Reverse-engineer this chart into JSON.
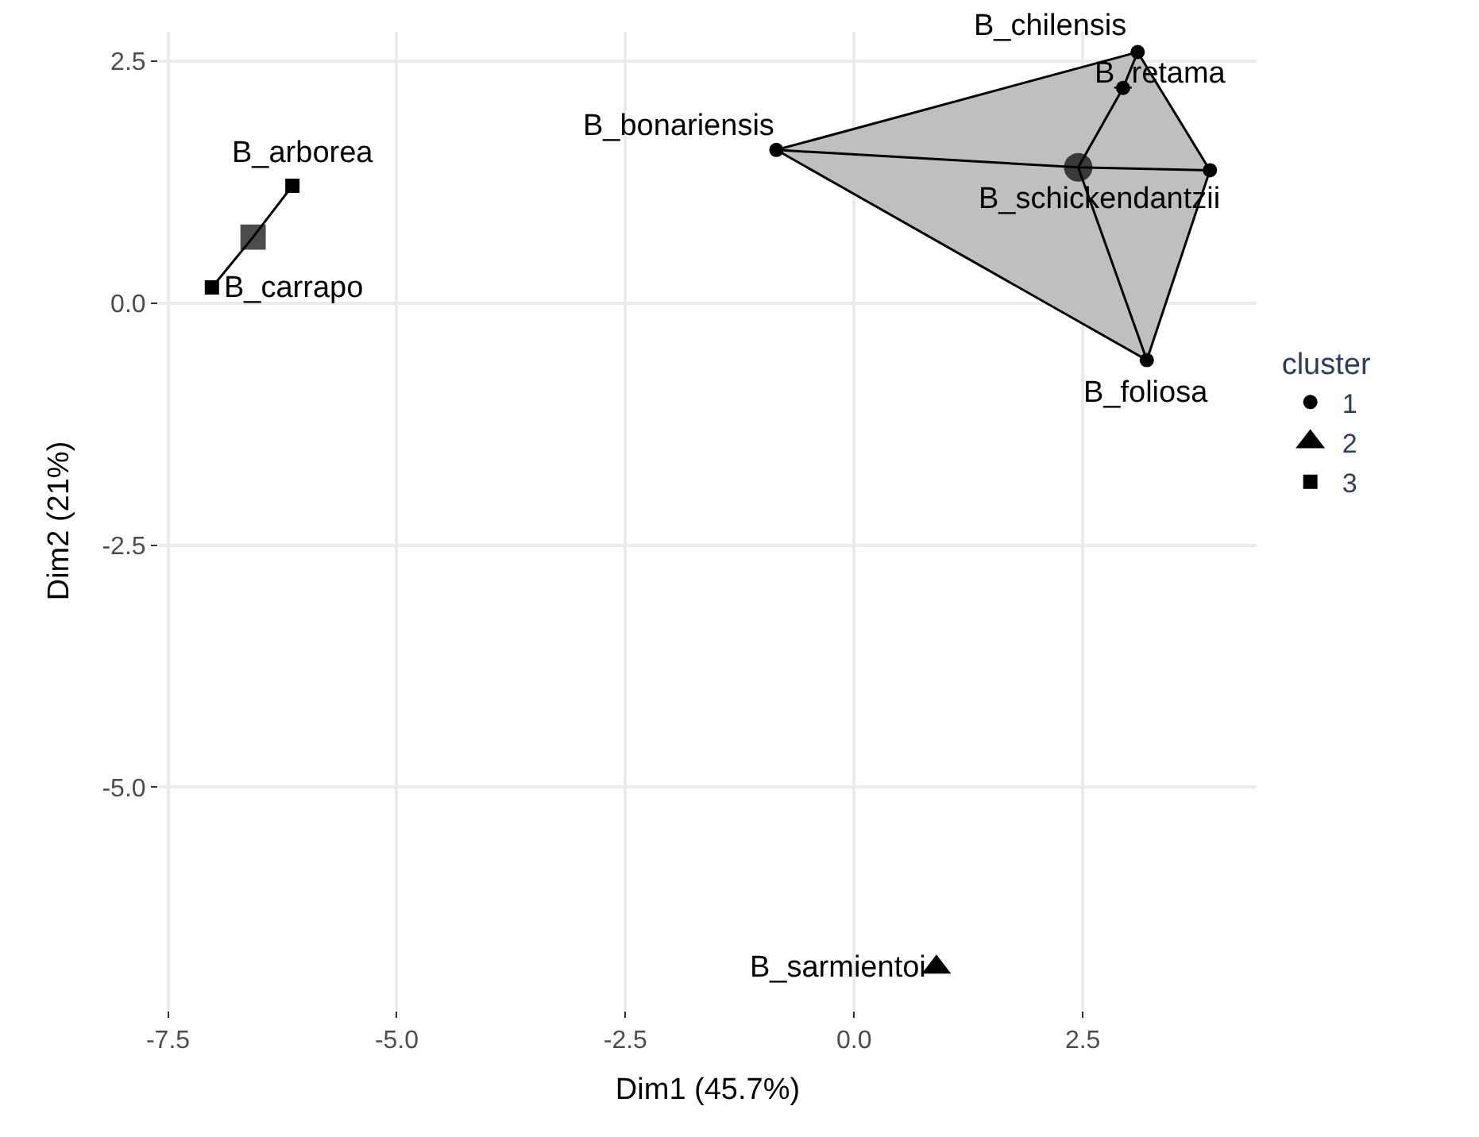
{
  "chart_data": {
    "type": "scatter",
    "xlabel": "Dim1 (45.7%)",
    "ylabel": "Dim2 (21%)",
    "legend_title": "cluster",
    "legend": "right",
    "grid": true,
    "xlim": [
      -7.6,
      4.4
    ],
    "xticks": [
      -7.5,
      {
        "value": -5,
        "label": "-5.0"
      },
      -2.5,
      {
        "value": 0,
        "label": "0.0"
      },
      2.5
    ],
    "ylim": [
      -7.3,
      2.8
    ],
    "yticks": [
      2.5,
      {
        "value": 0,
        "label": "0.0"
      },
      -2.5,
      {
        "value": -5,
        "label": "-5.0"
      }
    ],
    "series": [
      {
        "type": "area",
        "color": "#bfbfbf",
        "x": [
          -0.85,
          3.1,
          3.89,
          3.2,
          -0.85
        ],
        "values": [
          1.58,
          2.59,
          1.37,
          -0.59,
          1.58
        ]
      },
      {
        "type": "line",
        "color": "#000000",
        "x": [
          -0.85,
          2.45,
          3.89
        ],
        "values": [
          1.58,
          1.4,
          1.37
        ]
      },
      {
        "type": "line",
        "color": "#000000",
        "x": [
          2.45,
          2.94,
          3.1
        ],
        "values": [
          1.4,
          2.22,
          2.59
        ]
      },
      {
        "type": "line",
        "color": "#000000",
        "x": [
          2.45,
          3.2
        ],
        "values": [
          1.4,
          -0.59
        ]
      },
      {
        "type": "line",
        "color": "#000000",
        "x": [
          -7.02,
          -6.57,
          -6.14
        ],
        "values": [
          0.16,
          0.68,
          1.21
        ]
      },
      {
        "name": "1",
        "marker": "circle",
        "color": "#000000",
        "x": [
          -0.85,
          3.1,
          2.94,
          3.89,
          3.2
        ],
        "values": [
          1.58,
          2.59,
          2.22,
          1.37,
          -0.59
        ]
      },
      {
        "name": "2",
        "marker": "triangle",
        "color": "#000000",
        "x": [
          0.9
        ],
        "values": [
          -6.86
        ]
      },
      {
        "name": "3",
        "marker": "square",
        "color": "#000000",
        "x": [
          -6.14,
          -7.02
        ],
        "values": [
          1.21,
          0.16
        ]
      },
      {
        "type": "bubble",
        "marker": "circle",
        "color": "#000000",
        "x": [
          2.45
        ],
        "values": [
          1.4
        ],
        "sizes": [
          1
        ]
      },
      {
        "type": "bubble",
        "marker": "square",
        "color": "#000000",
        "x": [
          -6.57
        ],
        "values": [
          0.68
        ],
        "sizes": [
          1
        ]
      }
    ],
    "annotations": [
      {
        "text": "B_bonariensis",
        "x": -0.85,
        "y": 1.58
      },
      {
        "text": "B_chilensis",
        "x": 3.1,
        "y": 2.59
      },
      {
        "text": "B_retama",
        "x": 2.94,
        "y": 2.22
      },
      {
        "text": "B_schickendantzii",
        "x": 3.89,
        "y": 1.37
      },
      {
        "text": "B_foliosa",
        "x": 3.2,
        "y": -0.59
      },
      {
        "text": "B_sarmientoi",
        "x": 0.9,
        "y": -6.86
      },
      {
        "text": "B_arborea",
        "x": -6.14,
        "y": 1.21
      },
      {
        "text": "B_carrapo",
        "x": -7.02,
        "y": 0.16
      }
    ]
  }
}
